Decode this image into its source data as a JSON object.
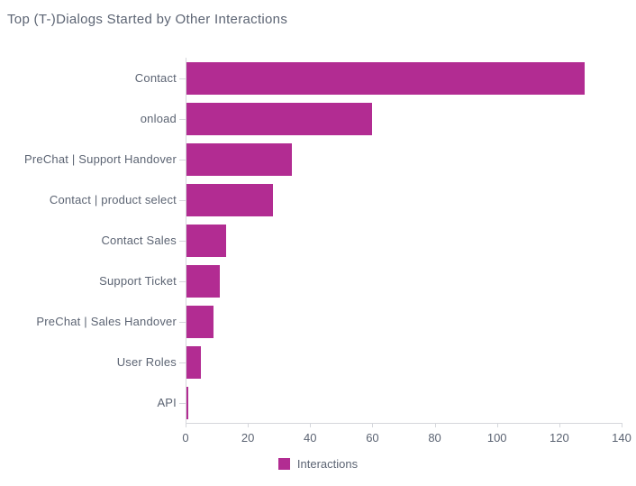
{
  "chart_data": {
    "type": "bar",
    "orientation": "horizontal",
    "title": "Top (T-)Dialogs Started by Other Interactions",
    "categories": [
      "Contact",
      "onload",
      "PreChat | Support Handover",
      "Contact | product select",
      "Contact Sales",
      "Support Ticket",
      "PreChat | Sales Handover",
      "User Roles",
      "API"
    ],
    "series": [
      {
        "name": "Interactions",
        "values": [
          128,
          60,
          34,
          28,
          13,
          11,
          9,
          5,
          1
        ]
      }
    ],
    "xlabel": "",
    "ylabel": "",
    "xlim": [
      0,
      140
    ],
    "xticks": [
      0,
      20,
      40,
      60,
      80,
      100,
      120,
      140
    ],
    "grid": false,
    "legend_position": "bottom"
  },
  "colors": {
    "bar": "#B22C92",
    "text": "#5C6473",
    "axis": "#D5D7DC",
    "background": "#FFFFFF"
  }
}
